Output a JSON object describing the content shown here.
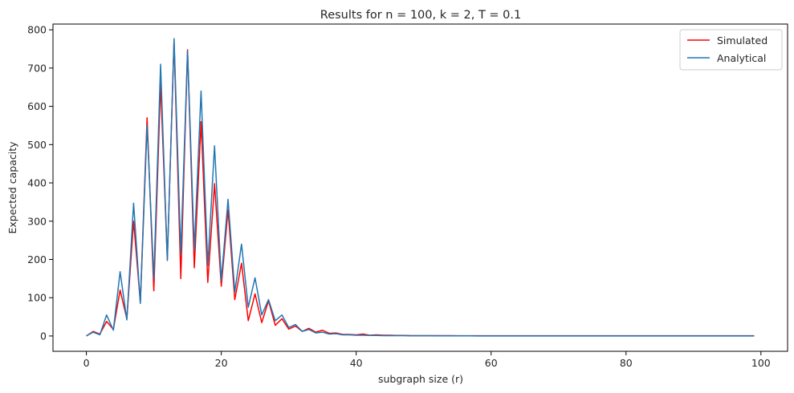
{
  "chart_data": {
    "type": "line",
    "title": "Results for n = 100, k = 2, T = 0.1",
    "xlabel": "subgraph size (r)",
    "ylabel": "Expected capacity",
    "xlim": [
      -4.95,
      103.95
    ],
    "ylim": [
      -40,
      815
    ],
    "xticks": [
      0,
      20,
      40,
      60,
      80,
      100
    ],
    "yticks": [
      0,
      100,
      200,
      300,
      400,
      500,
      600,
      700,
      800
    ],
    "grid": false,
    "legend_position": "top-right",
    "x_range": [
      0,
      99
    ],
    "series": [
      {
        "name": "Simulated",
        "color": "#ff0000",
        "values": [
          0,
          12,
          5,
          38,
          17,
          120,
          45,
          300,
          88,
          570,
          118,
          660,
          200,
          770,
          150,
          748,
          178,
          560,
          140,
          398,
          130,
          330,
          95,
          190,
          40,
          110,
          35,
          92,
          28,
          45,
          18,
          26,
          12,
          20,
          10,
          15,
          7,
          8,
          4,
          4,
          3,
          5,
          2,
          3,
          2,
          2,
          1.5,
          1.5,
          1,
          1,
          1,
          1,
          0.8,
          0.8,
          0.8,
          0.7,
          0.7,
          0.7,
          0.6,
          0.6,
          0.6,
          0.6,
          0.5,
          0.5,
          0.5,
          0.5,
          0.5,
          0.5,
          0.5,
          0.5,
          0.5,
          0.5,
          0.5,
          0.5,
          0.5,
          0.5,
          0.5,
          0.5,
          0.5,
          0.5,
          0.5,
          0.5,
          0.5,
          0.5,
          0.5,
          0.5,
          0.5,
          0.5,
          0.5,
          0.5,
          0.5,
          0.5,
          0.5,
          0.5,
          0.5,
          0.5,
          0.5,
          0.5,
          0.5,
          0.5
        ]
      },
      {
        "name": "Analytical",
        "color": "#1f77b4",
        "values": [
          0,
          10,
          3,
          55,
          15,
          168,
          42,
          347,
          85,
          550,
          150,
          710,
          197,
          777,
          215,
          745,
          225,
          640,
          185,
          497,
          145,
          357,
          115,
          240,
          75,
          152,
          55,
          95,
          40,
          55,
          22,
          30,
          12,
          17,
          8,
          10,
          5,
          6,
          3,
          3,
          2,
          2,
          1.5,
          1.5,
          1,
          1,
          0.8,
          0.8,
          0.6,
          0.6,
          0.5,
          0.5,
          0.4,
          0.4,
          0.3,
          0.3,
          0.3,
          0.3,
          0.2,
          0.2,
          0.2,
          0.2,
          0.2,
          0.2,
          0.2,
          0.2,
          0.2,
          0.2,
          0.2,
          0.2,
          0.2,
          0.2,
          0.2,
          0.2,
          0.2,
          0.2,
          0.2,
          0.2,
          0.2,
          0.2,
          0.2,
          0.2,
          0.2,
          0.2,
          0.2,
          0.2,
          0.2,
          0.2,
          0.2,
          0.2,
          0.2,
          0.2,
          0.2,
          0.2,
          0.2,
          0.2,
          0.2,
          0.2,
          0.2,
          0.2
        ]
      }
    ]
  }
}
